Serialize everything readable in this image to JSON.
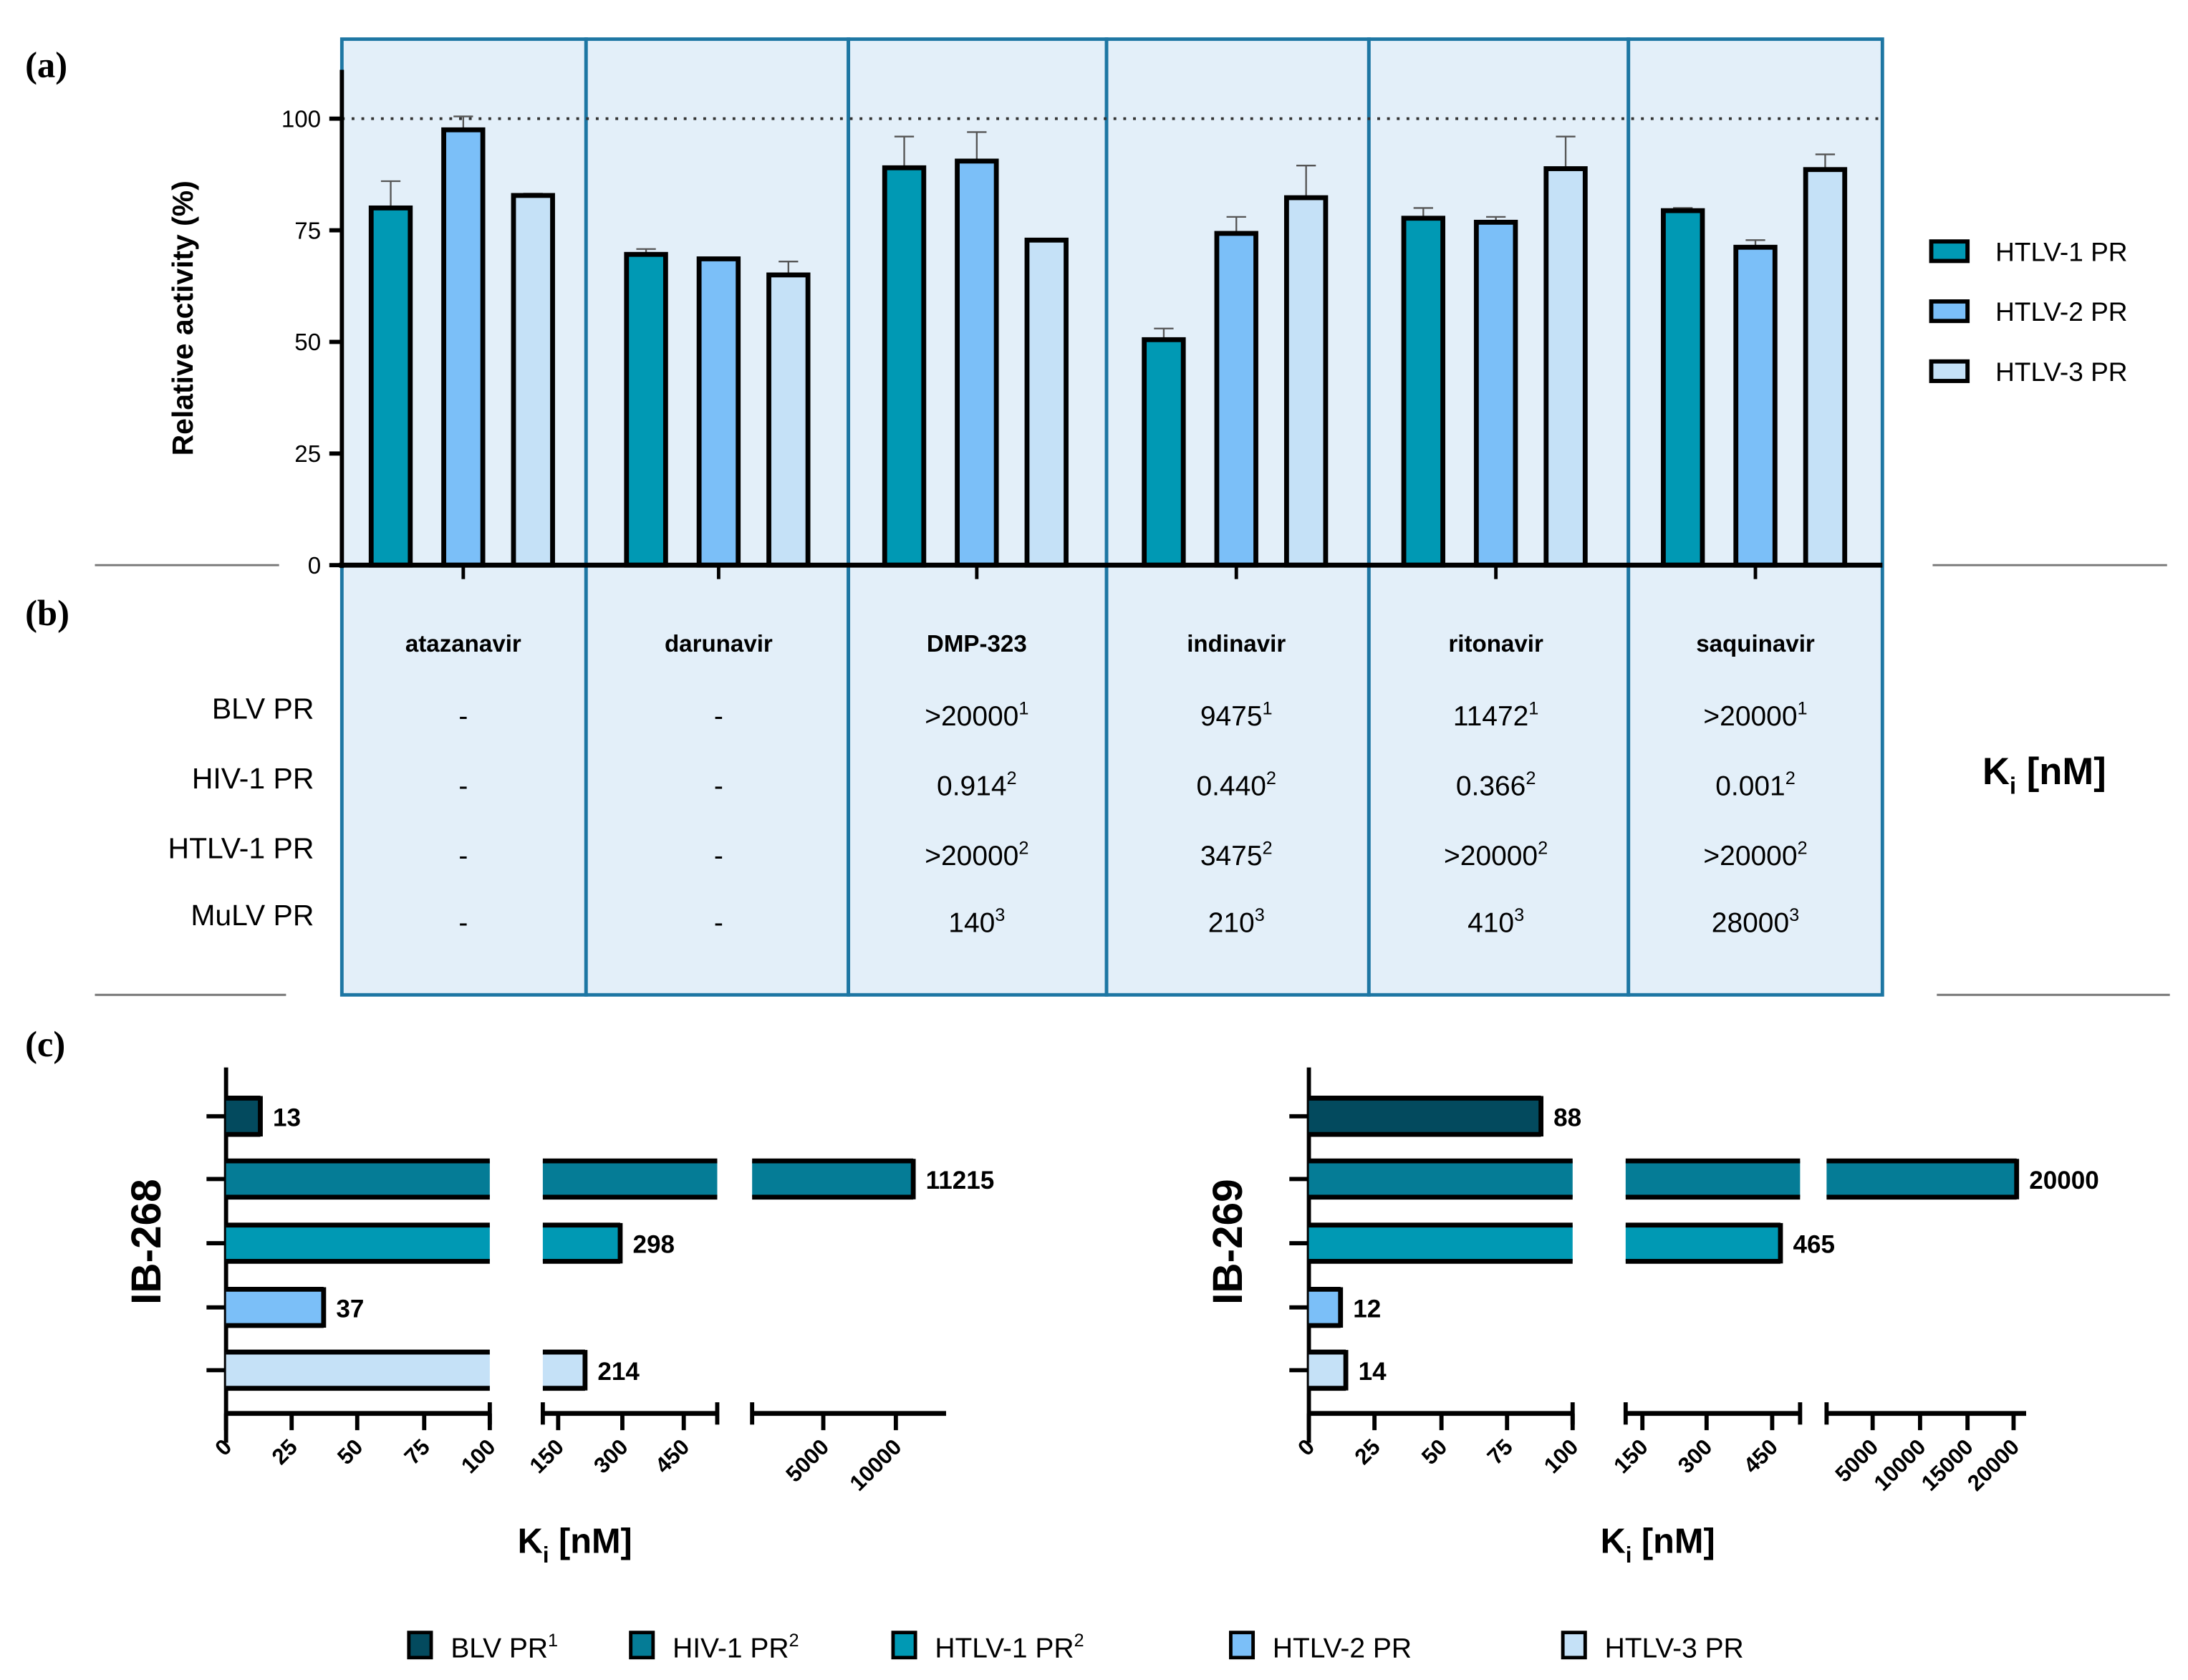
{
  "panel_labels": {
    "a": "(a)",
    "b": "(b)",
    "c": "(c)"
  },
  "colors": {
    "BLV": "#034a5e",
    "HIV1": "#057c96",
    "HTLV1": "#0099b4",
    "HTLV2": "#7bbff8",
    "HTLV3": "#c5e1f7",
    "panel_bg": "#e3eff9",
    "panel_border": "#1d76a3"
  },
  "chart_data": [
    {
      "type": "bar",
      "title": "(a)",
      "ylabel": "Relative activity (%)",
      "ylim": [
        0,
        110
      ],
      "yticks": [
        "0",
        "25",
        "50",
        "75",
        "100"
      ],
      "reference_line": 100,
      "categories": [
        "atazanavir",
        "darunavir",
        "DMP-323",
        "indinavir",
        "ritonavir",
        "saquinavir"
      ],
      "legend_position": "right",
      "series": [
        {
          "name": "HTLV-1 PR",
          "color": "#0099b4",
          "values": [
            80,
            69.6,
            89,
            50.5,
            77.7,
            79.4
          ],
          "errors": [
            6,
            1.2,
            7,
            2.5,
            2.3,
            0.6
          ]
        },
        {
          "name": "HTLV-2 PR",
          "color": "#7bbff8",
          "values": [
            97.5,
            68.6,
            90.5,
            74.3,
            76.8,
            71.2
          ],
          "errors": [
            3,
            0.2,
            6.5,
            3.7,
            1.2,
            1.6
          ]
        },
        {
          "name": "HTLV-3 PR",
          "color": "#c5e1f7",
          "values": [
            82.8,
            65,
            72.8,
            82.3,
            88.8,
            88.6
          ],
          "errors": [
            0.4,
            3,
            0.2,
            7.2,
            7.2,
            3.4
          ]
        }
      ]
    },
    {
      "type": "table",
      "title": "(b)",
      "unit_label": "K",
      "unit_sub": "i",
      "unit_suffix": " [nM]",
      "columns": [
        "atazanavir",
        "darunavir",
        "DMP-323",
        "indinavir",
        "ritonavir",
        "saquinavir"
      ],
      "rows": [
        {
          "label": "BLV PR",
          "cells": [
            {
              "v": "-",
              "r": ""
            },
            {
              "v": "-",
              "r": ""
            },
            {
              "v": ">20000",
              "r": "1"
            },
            {
              "v": "9475",
              "r": "1"
            },
            {
              "v": "11472",
              "r": "1"
            },
            {
              "v": ">20000",
              "r": "1"
            }
          ]
        },
        {
          "label": "HIV-1 PR",
          "cells": [
            {
              "v": "-",
              "r": ""
            },
            {
              "v": "-",
              "r": ""
            },
            {
              "v": "0.914",
              "r": "2"
            },
            {
              "v": "0.440",
              "r": "2"
            },
            {
              "v": "0.366",
              "r": "2"
            },
            {
              "v": "0.001",
              "r": "2"
            }
          ]
        },
        {
          "label": "HTLV-1 PR",
          "cells": [
            {
              "v": "-",
              "r": ""
            },
            {
              "v": "-",
              "r": ""
            },
            {
              "v": ">20000",
              "r": "2"
            },
            {
              "v": "3475",
              "r": "2"
            },
            {
              "v": ">20000",
              "r": "2"
            },
            {
              "v": ">20000",
              "r": "2"
            }
          ]
        },
        {
          "label": "MuLV PR",
          "cells": [
            {
              "v": "-",
              "r": ""
            },
            {
              "v": "-",
              "r": ""
            },
            {
              "v": "140",
              "r": "3"
            },
            {
              "v": "210",
              "r": "3"
            },
            {
              "v": "410",
              "r": "3"
            },
            {
              "v": "28000",
              "r": "3"
            }
          ]
        }
      ]
    },
    {
      "type": "bar",
      "orientation": "horizontal",
      "title": "(c)",
      "ylabel": "IB-268",
      "xlabel": "K",
      "xlabel_sub": "i",
      "xlabel_suffix": " [nM]",
      "axis_break": true,
      "xticks": [
        "0",
        "25",
        "50",
        "75",
        "100",
        "150",
        "300",
        "450",
        "5000",
        "10000"
      ],
      "categories": [
        "BLV PR",
        "HIV-1 PR",
        "HTLV-1 PR",
        "HTLV-2 PR",
        "HTLV-3 PR"
      ],
      "values": [
        13,
        11215,
        298,
        37,
        214
      ],
      "value_labels": [
        "13",
        "11215",
        "298",
        "37",
        "214"
      ]
    },
    {
      "type": "bar",
      "orientation": "horizontal",
      "title": "(c)",
      "ylabel": "IB-269",
      "xlabel": "K",
      "xlabel_sub": "i",
      "xlabel_suffix": " [nM]",
      "axis_break": true,
      "xticks": [
        "0",
        "25",
        "50",
        "75",
        "100",
        "150",
        "300",
        "450",
        "5000",
        "10000",
        "15000",
        "20000"
      ],
      "categories": [
        "BLV PR",
        "HIV-1 PR",
        "HTLV-1 PR",
        "HTLV-2 PR",
        "HTLV-3 PR"
      ],
      "values": [
        88,
        20000,
        465,
        12,
        14
      ],
      "value_labels": [
        "88",
        "20000",
        "465",
        "12",
        "14"
      ]
    }
  ],
  "bottom_legend": [
    {
      "label": "BLV PR",
      "sup": "1",
      "color": "#034a5e"
    },
    {
      "label": "HIV-1 PR",
      "sup": "2",
      "color": "#057c96"
    },
    {
      "label": "HTLV-1 PR",
      "sup": "2",
      "color": "#0099b4"
    },
    {
      "label": "HTLV-2 PR",
      "sup": "",
      "color": "#7bbff8"
    },
    {
      "label": "HTLV-3 PR",
      "sup": "",
      "color": "#c5e1f7"
    }
  ]
}
